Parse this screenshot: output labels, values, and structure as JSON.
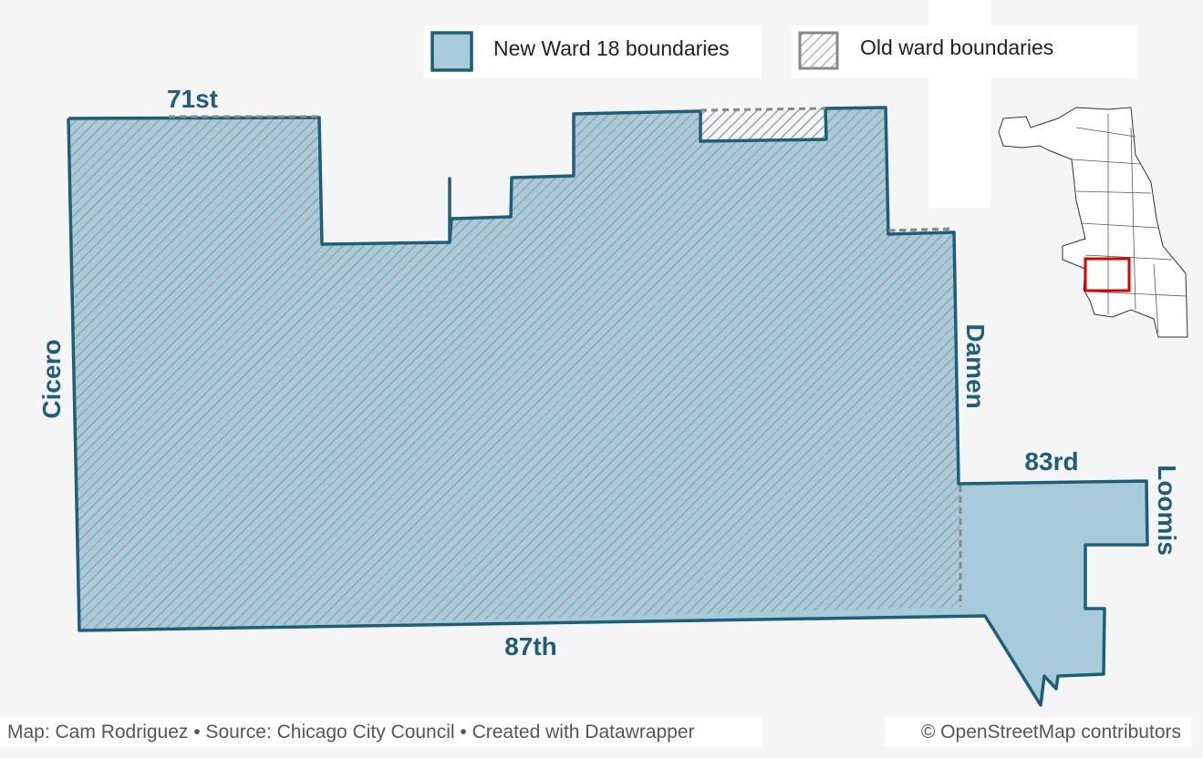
{
  "legend": [
    {
      "label": "New Ward 18 boundaries"
    },
    {
      "label": "Old ward boundaries"
    }
  ],
  "streets": [
    "71st",
    "Cicero",
    "Damen",
    "83rd",
    "Loomis",
    "87th"
  ],
  "footer": {
    "credit": "Map: Cam Rodriguez • Source: Chicago City Council • Created with Datawrapper",
    "attribution": "© OpenStreetMap contributors"
  }
}
